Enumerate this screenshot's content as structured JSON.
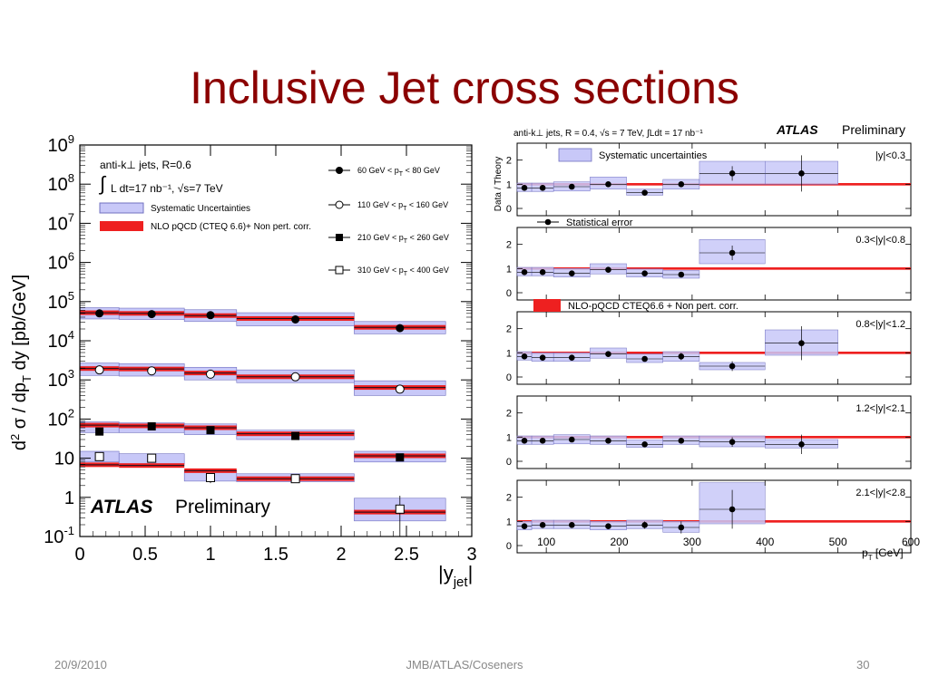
{
  "slide": {
    "title": "Inclusive Jet cross sections",
    "date": "20/9/2010",
    "center": "JMB/ATLAS/Coseners",
    "page": "30"
  },
  "colors": {
    "title": "#8b0000",
    "band_fill": "#c8c8f8",
    "band_stroke": "#7070c0",
    "theory": "#ee2020",
    "central": "#101020"
  },
  "chart_data": [
    {
      "type": "scatter",
      "ylabel": "d² σ / dp_T dy [pb/GeV]",
      "xlabel": "|y_jet|",
      "ylog": true,
      "ylim_exp": [
        -1,
        9
      ],
      "xlim": [
        0,
        3
      ],
      "x_ticks": [
        "0",
        "0.5",
        "1",
        "1.5",
        "2",
        "2.5",
        "3"
      ],
      "y_ticks": [
        {
          "b": "10",
          "e": "-1"
        },
        {
          "b": "1",
          "e": ""
        },
        {
          "b": "10",
          "e": ""
        },
        {
          "b": "10",
          "e": "2"
        },
        {
          "b": "10",
          "e": "3"
        },
        {
          "b": "10",
          "e": "4"
        },
        {
          "b": "10",
          "e": "5"
        },
        {
          "b": "10",
          "e": "6"
        },
        {
          "b": "10",
          "e": "7"
        },
        {
          "b": "10",
          "e": "8"
        },
        {
          "b": "10",
          "e": "9"
        }
      ],
      "annotation": {
        "jets": "anti-k⊥ jets,  R=0.6",
        "lumi": "L dt=17 nb⁻¹, √s=7 TeV",
        "atlas": "ATLAS",
        "preliminary": "Preliminary"
      },
      "legend_left": [
        "Systematic Uncertainties",
        "NLO pQCD (CTEQ 6.6)+ Non pert. corr."
      ],
      "series": [
        {
          "name": "60 GeV < p_T < 80 GeV",
          "marker": "filled-circle",
          "bins": [
            [
              0,
              0.3
            ],
            [
              0.3,
              0.8
            ],
            [
              0.8,
              1.2
            ],
            [
              1.2,
              2.1
            ],
            [
              2.1,
              2.8
            ]
          ],
          "x": [
            0.15,
            0.55,
            1.0,
            1.65,
            2.45
          ],
          "values": [
            50000,
            48000,
            45000,
            35000,
            21000
          ],
          "theory": [
            52000,
            50000,
            44000,
            37000,
            22000
          ],
          "band_lo": [
            36000,
            35000,
            31000,
            24000,
            15000
          ],
          "band_hi": [
            70000,
            68000,
            62000,
            52000,
            31000
          ]
        },
        {
          "name": "110 GeV < p_T < 160 GeV",
          "marker": "open-circle",
          "bins": [
            [
              0,
              0.3
            ],
            [
              0.3,
              0.8
            ],
            [
              0.8,
              1.2
            ],
            [
              1.2,
              2.1
            ],
            [
              2.1,
              2.8
            ]
          ],
          "x": [
            0.15,
            0.55,
            1.0,
            1.65,
            2.45
          ],
          "values": [
            1800,
            1700,
            1400,
            1200,
            580
          ],
          "theory": [
            1950,
            1900,
            1500,
            1200,
            640
          ],
          "band_lo": [
            1300,
            1250,
            1000,
            850,
            400
          ],
          "band_hi": [
            2700,
            2600,
            2100,
            1800,
            950
          ]
        },
        {
          "name": "210 GeV < p_T < 260 GeV",
          "marker": "filled-square",
          "bins": [
            [
              0,
              0.3
            ],
            [
              0.3,
              0.8
            ],
            [
              0.8,
              1.2
            ],
            [
              1.2,
              2.1
            ],
            [
              2.1,
              2.8
            ]
          ],
          "x": [
            0.15,
            0.55,
            1.0,
            1.65,
            2.45
          ],
          "values": [
            48,
            65,
            52,
            37,
            10.5
          ],
          "theory": [
            70,
            67,
            60,
            42,
            11.5
          ],
          "band_lo": [
            45,
            45,
            40,
            30,
            8
          ],
          "band_hi": [
            85,
            80,
            75,
            52,
            15
          ]
        },
        {
          "name": "310 GeV < p_T < 400 GeV",
          "marker": "open-square",
          "bins": [
            [
              0,
              0.3
            ],
            [
              0.3,
              0.8
            ],
            [
              0.8,
              1.2
            ],
            [
              1.2,
              2.1
            ],
            [
              2.1,
              2.8
            ]
          ],
          "x": [
            0.15,
            0.55,
            1.0,
            1.65,
            2.45
          ],
          "values": [
            11,
            10,
            3.2,
            3.0,
            0.5
          ],
          "theory": [
            6.8,
            6.5,
            4.8,
            3.0,
            0.42
          ],
          "band_lo": [
            8,
            7,
            2.6,
            2.5,
            0.25
          ],
          "band_hi": [
            15,
            13,
            4.8,
            4.0,
            0.95
          ]
        }
      ]
    },
    {
      "type": "scatter",
      "title": "anti-k⊥ jets,  R = 0.4,  √s = 7 TeV,  ∫Ldt = 17 nb⁻¹",
      "atlas": "ATLAS",
      "preliminary": "Preliminary",
      "ylabel": "Data / Theory",
      "xlabel": "p_T [GeV]",
      "xlim": [
        60,
        600
      ],
      "x_ticks": [
        "100",
        "200",
        "300",
        "400",
        "500",
        "600"
      ],
      "y_ticks": [
        "0",
        "1",
        "2"
      ],
      "panel_ylim": [
        -0.3,
        2.7
      ],
      "legend": [
        "Systematic uncertainties",
        "Statistical error",
        "NLO-pQCD CTEQ6.6 + Non pert. corr."
      ],
      "panels": [
        {
          "label": "|y|<0.3",
          "bins": [
            [
              60,
              80
            ],
            [
              80,
              110
            ],
            [
              110,
              160
            ],
            [
              160,
              210
            ],
            [
              210,
              260
            ],
            [
              260,
              310
            ],
            [
              310,
              400
            ],
            [
              400,
              500
            ]
          ],
          "x": [
            70,
            95,
            135,
            185,
            235,
            285,
            355,
            450
          ],
          "values": [
            0.85,
            0.85,
            0.9,
            1.0,
            0.65,
            1.0,
            1.45,
            1.45
          ],
          "err": [
            0.05,
            0.05,
            0.05,
            0.08,
            0.08,
            0.12,
            0.3,
            0.75
          ],
          "band_lo": [
            0.7,
            0.7,
            0.72,
            0.8,
            0.55,
            0.8,
            1.0,
            1.0
          ],
          "band_hi": [
            1.05,
            1.05,
            1.1,
            1.3,
            0.8,
            1.2,
            1.95,
            1.95
          ]
        },
        {
          "label": "0.3<|y|<0.8",
          "bins": [
            [
              60,
              80
            ],
            [
              80,
              110
            ],
            [
              110,
              160
            ],
            [
              160,
              210
            ],
            [
              210,
              260
            ],
            [
              260,
              310
            ],
            [
              310,
              400
            ]
          ],
          "x": [
            70,
            95,
            135,
            185,
            235,
            285,
            355
          ],
          "values": [
            0.85,
            0.85,
            0.8,
            0.95,
            0.8,
            0.75,
            1.65
          ],
          "err": [
            0.05,
            0.05,
            0.05,
            0.08,
            0.08,
            0.1,
            0.3
          ],
          "band_lo": [
            0.7,
            0.7,
            0.65,
            0.78,
            0.65,
            0.6,
            1.2
          ],
          "band_hi": [
            1.05,
            1.05,
            1.0,
            1.2,
            0.98,
            0.92,
            2.2
          ]
        },
        {
          "label": "0.8<|y|<1.2",
          "bins": [
            [
              60,
              80
            ],
            [
              80,
              110
            ],
            [
              110,
              160
            ],
            [
              160,
              210
            ],
            [
              210,
              260
            ],
            [
              260,
              310
            ],
            [
              310,
              400
            ],
            [
              400,
              500
            ]
          ],
          "x": [
            70,
            95,
            135,
            185,
            235,
            285,
            355,
            450
          ],
          "values": [
            0.85,
            0.8,
            0.8,
            0.95,
            0.75,
            0.85,
            0.45,
            1.4
          ],
          "err": [
            0.05,
            0.05,
            0.05,
            0.08,
            0.1,
            0.15,
            0.2,
            0.7
          ],
          "band_lo": [
            0.7,
            0.65,
            0.65,
            0.78,
            0.6,
            0.65,
            0.3,
            0.9
          ],
          "band_hi": [
            1.05,
            1.0,
            1.0,
            1.2,
            0.95,
            1.05,
            0.6,
            1.95
          ]
        },
        {
          "label": "1.2<|y|<2.1",
          "bins": [
            [
              60,
              80
            ],
            [
              80,
              110
            ],
            [
              110,
              160
            ],
            [
              160,
              210
            ],
            [
              210,
              260
            ],
            [
              260,
              310
            ],
            [
              310,
              400
            ],
            [
              400,
              500
            ]
          ],
          "x": [
            70,
            95,
            135,
            185,
            235,
            285,
            355,
            450
          ],
          "values": [
            0.85,
            0.85,
            0.9,
            0.85,
            0.7,
            0.85,
            0.8,
            0.7
          ],
          "err": [
            0.05,
            0.05,
            0.05,
            0.06,
            0.08,
            0.1,
            0.2,
            0.4
          ],
          "band_lo": [
            0.7,
            0.7,
            0.72,
            0.7,
            0.58,
            0.7,
            0.6,
            0.55
          ],
          "band_hi": [
            1.05,
            1.05,
            1.1,
            1.05,
            0.88,
            1.05,
            1.05,
            0.9
          ]
        },
        {
          "label": "2.1<|y|<2.8",
          "bins": [
            [
              60,
              80
            ],
            [
              80,
              110
            ],
            [
              110,
              160
            ],
            [
              160,
              210
            ],
            [
              210,
              260
            ],
            [
              260,
              310
            ],
            [
              310,
              400
            ]
          ],
          "x": [
            70,
            95,
            135,
            185,
            235,
            285,
            355
          ],
          "values": [
            0.8,
            0.85,
            0.85,
            0.8,
            0.85,
            0.75,
            1.5
          ],
          "err": [
            0.05,
            0.05,
            0.06,
            0.08,
            0.15,
            0.25,
            0.8
          ],
          "band_lo": [
            0.65,
            0.7,
            0.7,
            0.65,
            0.7,
            0.55,
            0.9
          ],
          "band_hi": [
            1.0,
            1.05,
            1.05,
            1.0,
            1.05,
            1.0,
            2.6
          ]
        }
      ]
    }
  ]
}
